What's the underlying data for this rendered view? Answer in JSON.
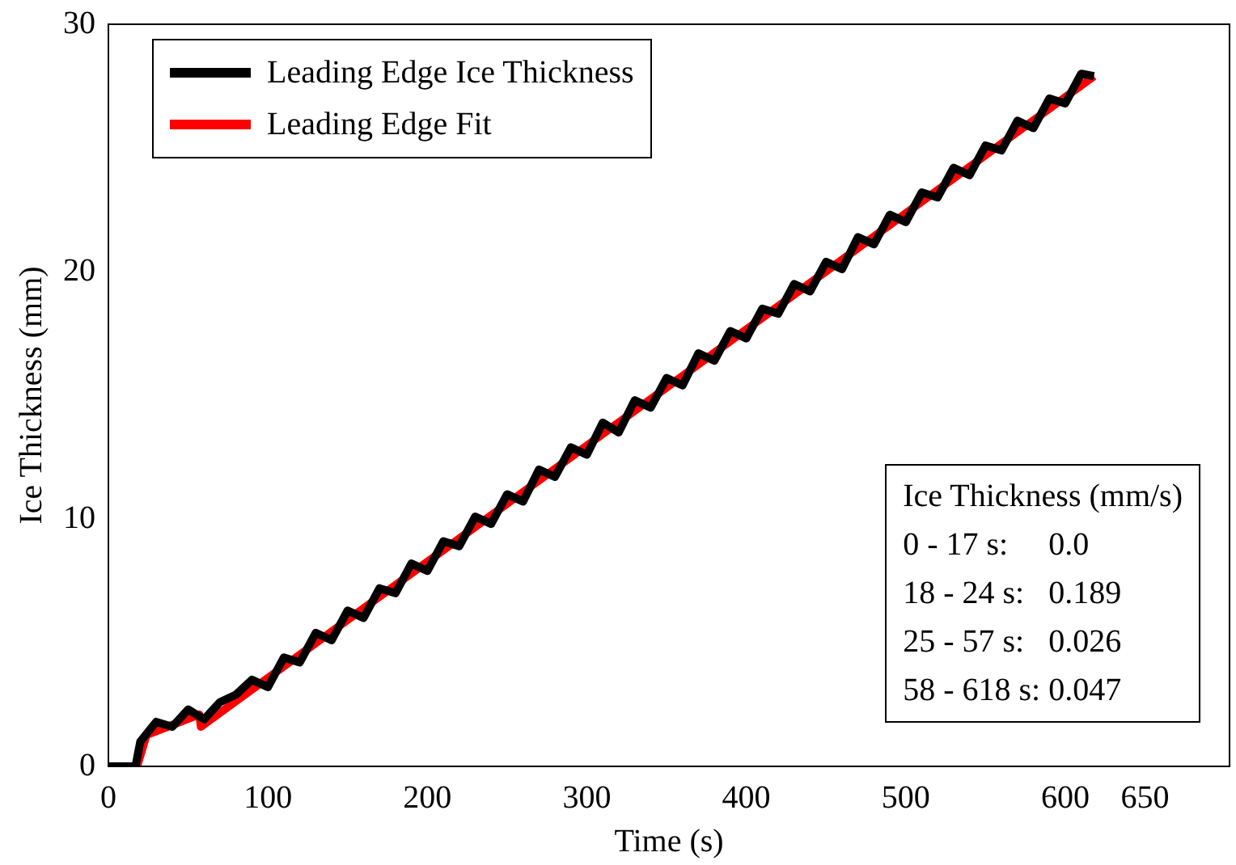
{
  "chart_data": {
    "type": "line",
    "xlabel": "Time (s)",
    "ylabel": "Ice Thickness (mm)",
    "xlim": [
      0,
      703
    ],
    "xticks": [
      0,
      100,
      200,
      300,
      400,
      500,
      600,
      650
    ],
    "ylim": [
      0,
      30
    ],
    "yticks": [
      0,
      10,
      20,
      30
    ],
    "legend": "top left",
    "marker": "none",
    "line_style": "solid",
    "series": [
      {
        "name": "Leading Edge Ice Thickness",
        "color": "#000000",
        "x": [
          0,
          10,
          17,
          20,
          30,
          40,
          50,
          60,
          70,
          80,
          90,
          100,
          110,
          120,
          130,
          140,
          150,
          160,
          170,
          180,
          190,
          200,
          210,
          220,
          230,
          240,
          250,
          260,
          270,
          280,
          290,
          300,
          310,
          320,
          330,
          340,
          350,
          360,
          370,
          380,
          390,
          400,
          410,
          420,
          430,
          440,
          450,
          460,
          470,
          480,
          490,
          500,
          510,
          520,
          530,
          540,
          550,
          560,
          570,
          580,
          590,
          600,
          610,
          618
        ],
        "values": [
          0,
          0,
          0,
          1.0,
          1.8,
          1.6,
          2.3,
          1.9,
          2.6,
          2.9,
          3.5,
          3.2,
          4.4,
          4.2,
          5.4,
          5.1,
          6.3,
          6.0,
          7.2,
          7.0,
          8.2,
          7.9,
          9.1,
          8.9,
          10.1,
          9.8,
          11.0,
          10.7,
          12.0,
          11.7,
          12.9,
          12.6,
          13.9,
          13.5,
          14.8,
          14.5,
          15.7,
          15.4,
          16.7,
          16.4,
          17.6,
          17.3,
          18.5,
          18.3,
          19.5,
          19.2,
          20.4,
          20.1,
          21.4,
          21.1,
          22.3,
          22.0,
          23.2,
          23.0,
          24.2,
          23.9,
          25.1,
          24.9,
          26.1,
          25.8,
          27.0,
          26.8,
          28.0,
          27.9
        ]
      },
      {
        "name": "Leading Edge Fit",
        "color": "#ff0000",
        "x": [
          0,
          17,
          18,
          24,
          25,
          57,
          58,
          618
        ],
        "values": [
          0,
          0,
          0,
          1.3,
          1.3,
          2.1,
          1.6,
          27.9
        ]
      }
    ],
    "annotations": [
      "Ice Thickness (mm/s)",
      "0 - 17 s:     0.0",
      "18 - 24 s:   0.189",
      "25 - 57 s:   0.026",
      "58 - 618 s: 0.047"
    ]
  }
}
